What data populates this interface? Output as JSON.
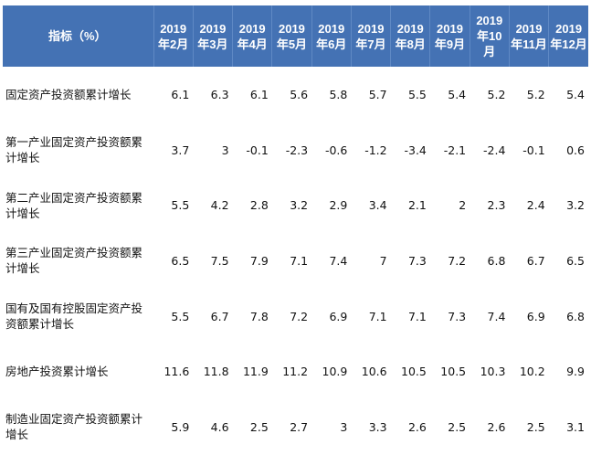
{
  "table": {
    "header_label": "指标（%）",
    "months": [
      "2019年2月",
      "2019年3月",
      "2019年4月",
      "2019年5月",
      "2019年6月",
      "2019年7月",
      "2019年8月",
      "2019年9月",
      "2019年10月",
      "2019年11月",
      "2019年12月"
    ],
    "rows": [
      {
        "name": "固定资产投资额累计增长",
        "values": [
          "6.1",
          "6.3",
          "6.1",
          "5.6",
          "5.8",
          "5.7",
          "5.5",
          "5.4",
          "5.2",
          "5.2",
          "5.4"
        ]
      },
      {
        "name": "第一产业固定资产投资额累计增长",
        "values": [
          "3.7",
          "3",
          "-0.1",
          "-2.3",
          "-0.6",
          "-1.2",
          "-3.4",
          "-2.1",
          "-2.4",
          "-0.1",
          "0.6"
        ]
      },
      {
        "name": "第二产业固定资产投资额累计增长",
        "values": [
          "5.5",
          "4.2",
          "2.8",
          "3.2",
          "2.9",
          "3.4",
          "2.1",
          "2",
          "2.3",
          "2.4",
          "3.2"
        ]
      },
      {
        "name": "第三产业固定资产投资额累计增长",
        "values": [
          "6.5",
          "7.5",
          "7.9",
          "7.1",
          "7.4",
          "7",
          "7.3",
          "7.2",
          "6.8",
          "6.7",
          "6.5"
        ]
      },
      {
        "name": "国有及国有控股固定资产投资额累计增长",
        "values": [
          "5.5",
          "6.7",
          "7.8",
          "7.2",
          "6.9",
          "7.1",
          "7.1",
          "7.3",
          "7.4",
          "6.9",
          "6.8"
        ]
      },
      {
        "name": "房地产投资累计增长",
        "values": [
          "11.6",
          "11.8",
          "11.9",
          "11.2",
          "10.9",
          "10.6",
          "10.5",
          "10.5",
          "10.3",
          "10.2",
          "9.9"
        ]
      },
      {
        "name": "制造业固定资产投资额累计增长",
        "values": [
          "5.9",
          "4.6",
          "2.5",
          "2.7",
          "3",
          "3.3",
          "2.6",
          "2.5",
          "2.6",
          "2.5",
          "3.1"
        ]
      }
    ]
  },
  "colors": {
    "header_background": "#4472b4",
    "header_text": "#ffffff",
    "body_text": "#111111"
  }
}
